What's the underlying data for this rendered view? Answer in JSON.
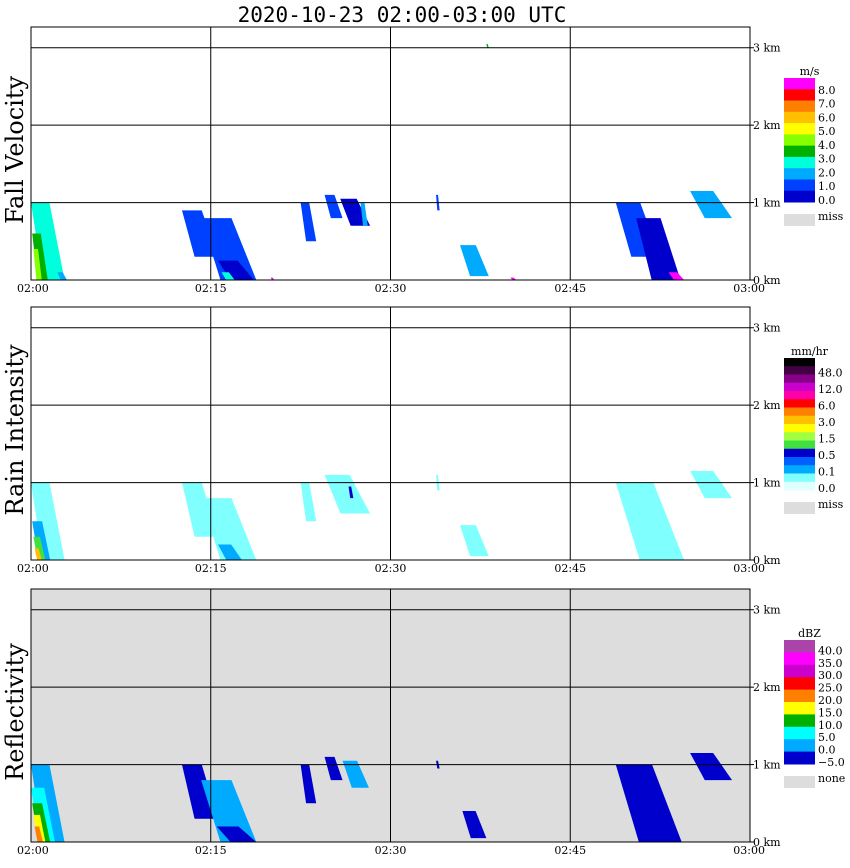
{
  "figure": {
    "title": "2020-10-23   02:00-03:00 UTC"
  },
  "chart_data": [
    {
      "type": "heatmap",
      "panel": "fall_velocity",
      "ylabel": "Fall Velocity",
      "xlim": [
        "02:00",
        "03:00"
      ],
      "x_ticks": [
        "02:00",
        "02:15",
        "02:30",
        "02:45",
        "03:00"
      ],
      "ylim_km": [
        0,
        3.1
      ],
      "y_ticks": [
        "0 km",
        "1 km",
        "2 km",
        "3 km"
      ],
      "grid": true,
      "colorbar": {
        "unit": "m/s",
        "labels": [
          "8.0",
          "7.0",
          "6.0",
          "5.0",
          "4.0",
          "3.0",
          "2.0",
          "1.0",
          "0.0"
        ],
        "colors": [
          "#ff00ff",
          "#ff0000",
          "#ff8000",
          "#ffc000",
          "#ffff00",
          "#88ff00",
          "#00b000",
          "#00ffdd",
          "#00aaff",
          "#0040ff",
          "#0000cc"
        ],
        "missing_label": "miss",
        "missing_color": "#dddddd"
      },
      "echoes": [
        {
          "t0": 0.0,
          "t1": 2.8,
          "z0": 0.0,
          "z1": 1.0,
          "color": "#00ffdd"
        },
        {
          "t0": 0.1,
          "t1": 1.4,
          "z0": 0.0,
          "z1": 0.6,
          "color": "#00b000"
        },
        {
          "t0": 0.2,
          "t1": 0.9,
          "z0": 0.0,
          "z1": 0.4,
          "color": "#88ff00"
        },
        {
          "t0": 2.2,
          "t1": 3.0,
          "z0": 0.0,
          "z1": 0.1,
          "color": "#00aaff"
        },
        {
          "t0": 12.6,
          "t1": 15.6,
          "z0": 0.3,
          "z1": 0.9,
          "color": "#0040ff"
        },
        {
          "t0": 14.2,
          "t1": 18.8,
          "z0": 0.0,
          "z1": 0.8,
          "color": "#0040ff"
        },
        {
          "t0": 15.6,
          "t1": 18.6,
          "z0": 0.0,
          "z1": 0.25,
          "color": "#0000cc"
        },
        {
          "t0": 15.9,
          "t1": 17.0,
          "z0": 0.0,
          "z1": 0.1,
          "color": "#00ffdd"
        },
        {
          "t0": 20.0,
          "t1": 20.3,
          "z0": 0.0,
          "z1": 0.03,
          "color": "#ff00ff"
        },
        {
          "t0": 22.5,
          "t1": 23.8,
          "z0": 0.5,
          "z1": 1.0,
          "color": "#0040ff"
        },
        {
          "t0": 24.5,
          "t1": 26.0,
          "z0": 0.8,
          "z1": 1.1,
          "color": "#0040ff"
        },
        {
          "t0": 25.8,
          "t1": 28.3,
          "z0": 0.7,
          "z1": 1.05,
          "color": "#0000cc"
        },
        {
          "t0": 27.5,
          "t1": 28.1,
          "z0": 0.7,
          "z1": 1.0,
          "color": "#00aaff"
        },
        {
          "t0": 33.8,
          "t1": 34.1,
          "z0": 0.9,
          "z1": 1.1,
          "color": "#0040ff"
        },
        {
          "t0": 35.8,
          "t1": 38.2,
          "z0": 0.05,
          "z1": 0.45,
          "color": "#00aaff"
        },
        {
          "t0": 38.0,
          "t1": 38.2,
          "z0": 3.0,
          "z1": 3.05,
          "color": "#00b000"
        },
        {
          "t0": 40.0,
          "t1": 40.5,
          "z0": 0.0,
          "z1": 0.03,
          "color": "#ff00ff"
        },
        {
          "t0": 48.8,
          "t1": 52.5,
          "z0": 0.3,
          "z1": 1.0,
          "color": "#0040ff"
        },
        {
          "t0": 50.5,
          "t1": 54.2,
          "z0": 0.0,
          "z1": 0.8,
          "color": "#0000cc"
        },
        {
          "t0": 53.2,
          "t1": 54.5,
          "z0": 0.0,
          "z1": 0.1,
          "color": "#ff00ff"
        },
        {
          "t0": 55.0,
          "t1": 58.5,
          "z0": 0.8,
          "z1": 1.15,
          "color": "#00aaff"
        }
      ]
    },
    {
      "type": "heatmap",
      "panel": "rain_intensity",
      "ylabel": "Rain Intensity",
      "xlim": [
        "02:00",
        "03:00"
      ],
      "x_ticks": [
        "02:00",
        "02:15",
        "02:30",
        "02:45",
        "03:00"
      ],
      "ylim_km": [
        0,
        3.1
      ],
      "y_ticks": [
        "0 km",
        "1 km",
        "2 km",
        "3 km"
      ],
      "grid": true,
      "colorbar": {
        "unit": "mm/hr",
        "labels": [
          "48.0",
          "12.0",
          "6.0",
          "3.0",
          "1.5",
          "0.5",
          "0.1",
          "0.0"
        ],
        "colors": [
          "#000000",
          "#440044",
          "#880088",
          "#cc00cc",
          "#ff00aa",
          "#ff0000",
          "#ff8000",
          "#ffc000",
          "#ffff00",
          "#a0ff40",
          "#40e040",
          "#0000cc",
          "#0060ff",
          "#00aaff",
          "#80ffff",
          "#e0ffff"
        ],
        "missing_label": "miss",
        "missing_color": "#dddddd"
      },
      "echoes": [
        {
          "t0": 0.0,
          "t1": 2.8,
          "z0": 0.0,
          "z1": 1.0,
          "color": "#80ffff"
        },
        {
          "t0": 0.1,
          "t1": 1.6,
          "z0": 0.0,
          "z1": 0.5,
          "color": "#00aaff"
        },
        {
          "t0": 0.2,
          "t1": 1.2,
          "z0": 0.0,
          "z1": 0.3,
          "color": "#40e040"
        },
        {
          "t0": 0.3,
          "t1": 0.9,
          "z0": 0.0,
          "z1": 0.15,
          "color": "#ffc000"
        },
        {
          "t0": 12.6,
          "t1": 15.6,
          "z0": 0.3,
          "z1": 1.0,
          "color": "#80ffff"
        },
        {
          "t0": 14.2,
          "t1": 18.8,
          "z0": 0.0,
          "z1": 0.8,
          "color": "#80ffff"
        },
        {
          "t0": 15.6,
          "t1": 17.6,
          "z0": 0.0,
          "z1": 0.2,
          "color": "#00aaff"
        },
        {
          "t0": 22.5,
          "t1": 23.8,
          "z0": 0.5,
          "z1": 1.0,
          "color": "#80ffff"
        },
        {
          "t0": 24.5,
          "t1": 28.3,
          "z0": 0.6,
          "z1": 1.1,
          "color": "#80ffff"
        },
        {
          "t0": 26.5,
          "t1": 26.9,
          "z0": 0.8,
          "z1": 0.95,
          "color": "#0000cc"
        },
        {
          "t0": 33.8,
          "t1": 34.1,
          "z0": 0.9,
          "z1": 1.1,
          "color": "#80ffff"
        },
        {
          "t0": 35.8,
          "t1": 38.2,
          "z0": 0.05,
          "z1": 0.45,
          "color": "#80ffff"
        },
        {
          "t0": 48.8,
          "t1": 54.5,
          "z0": 0.0,
          "z1": 1.0,
          "color": "#80ffff"
        },
        {
          "t0": 55.0,
          "t1": 58.5,
          "z0": 0.8,
          "z1": 1.15,
          "color": "#80ffff"
        }
      ]
    },
    {
      "type": "heatmap",
      "panel": "reflectivity",
      "ylabel": "Reflectivity",
      "xlim": [
        "02:00",
        "03:00"
      ],
      "x_ticks": [
        "02:00",
        "02:15",
        "02:30",
        "02:45",
        "03:00"
      ],
      "ylim_km": [
        0,
        3.1
      ],
      "y_ticks": [
        "0 km",
        "1 km",
        "2 km",
        "3 km"
      ],
      "grid": true,
      "background_color": "#dddddd",
      "colorbar": {
        "unit": "dBZ",
        "labels": [
          "40.0",
          "35.0",
          "30.0",
          "25.0",
          "20.0",
          "15.0",
          "10.0",
          "5.0",
          "0.0",
          "−5.0"
        ],
        "colors": [
          "#aa44aa",
          "#ff00ff",
          "#cc00cc",
          "#ff0000",
          "#ff8000",
          "#ffff00",
          "#00b000",
          "#00ffff",
          "#00aaff",
          "#0000cc"
        ],
        "missing_label": "none",
        "missing_color": "#dddddd"
      },
      "echoes": [
        {
          "t0": 0.0,
          "t1": 2.8,
          "z0": 0.0,
          "z1": 1.0,
          "color": "#00aaff"
        },
        {
          "t0": 0.0,
          "t1": 2.0,
          "z0": 0.0,
          "z1": 0.7,
          "color": "#00ffff"
        },
        {
          "t0": 0.1,
          "t1": 1.6,
          "z0": 0.0,
          "z1": 0.5,
          "color": "#00b000"
        },
        {
          "t0": 0.2,
          "t1": 1.2,
          "z0": 0.0,
          "z1": 0.35,
          "color": "#ffff00"
        },
        {
          "t0": 0.3,
          "t1": 1.0,
          "z0": 0.0,
          "z1": 0.2,
          "color": "#ff8000"
        },
        {
          "t0": 12.6,
          "t1": 15.6,
          "z0": 0.3,
          "z1": 1.0,
          "color": "#0000cc"
        },
        {
          "t0": 14.2,
          "t1": 18.8,
          "z0": 0.0,
          "z1": 0.8,
          "color": "#00aaff"
        },
        {
          "t0": 15.5,
          "t1": 18.8,
          "z0": 0.0,
          "z1": 0.2,
          "color": "#0000cc"
        },
        {
          "t0": 22.5,
          "t1": 23.8,
          "z0": 0.5,
          "z1": 1.0,
          "color": "#0000cc"
        },
        {
          "t0": 24.5,
          "t1": 26.0,
          "z0": 0.8,
          "z1": 1.1,
          "color": "#0000cc"
        },
        {
          "t0": 26.0,
          "t1": 28.2,
          "z0": 0.7,
          "z1": 1.05,
          "color": "#00aaff"
        },
        {
          "t0": 33.8,
          "t1": 34.1,
          "z0": 0.95,
          "z1": 1.05,
          "color": "#0000cc"
        },
        {
          "t0": 36.0,
          "t1": 38.0,
          "z0": 0.05,
          "z1": 0.4,
          "color": "#0000cc"
        },
        {
          "t0": 48.8,
          "t1": 54.3,
          "z0": 0.0,
          "z1": 1.0,
          "color": "#0000cc"
        },
        {
          "t0": 55.0,
          "t1": 58.5,
          "z0": 0.8,
          "z1": 1.15,
          "color": "#0000cc"
        }
      ]
    }
  ]
}
